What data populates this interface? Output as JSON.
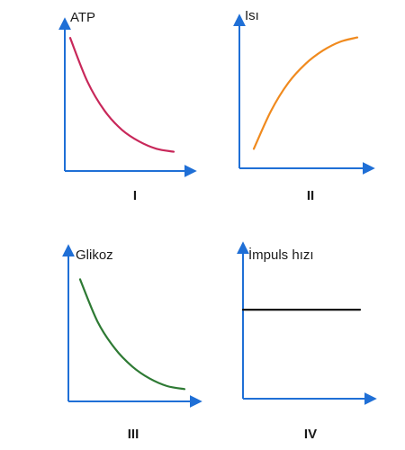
{
  "chart_data": [
    {
      "type": "line",
      "ylabel": "ATP",
      "xlabel": "",
      "panel_label": "I",
      "trend": "decreasing",
      "shape": "convex-decay",
      "color": "#c8285a",
      "series": [
        {
          "values": [
            0.9,
            0.6,
            0.4,
            0.27,
            0.19,
            0.14,
            0.12
          ]
        }
      ]
    },
    {
      "type": "line",
      "ylabel": "Isı",
      "xlabel": "",
      "panel_label": "II",
      "trend": "increasing",
      "shape": "concave-rise",
      "color": "#f08a1e",
      "series": [
        {
          "values": [
            0.12,
            0.38,
            0.57,
            0.7,
            0.79,
            0.85,
            0.88
          ]
        }
      ]
    },
    {
      "type": "line",
      "ylabel": "Glikoz",
      "xlabel": "",
      "panel_label": "III",
      "trend": "decreasing",
      "shape": "convex-decay",
      "color": "#2e7a34",
      "series": [
        {
          "values": [
            0.8,
            0.52,
            0.34,
            0.22,
            0.14,
            0.09,
            0.07
          ]
        }
      ]
    },
    {
      "type": "line",
      "ylabel": "İmpuls hızı",
      "xlabel": "",
      "panel_label": "IV",
      "trend": "constant",
      "shape": "flat",
      "color": "#111111",
      "series": [
        {
          "values": [
            0.58,
            0.58,
            0.58,
            0.58,
            0.58,
            0.58,
            0.58
          ]
        }
      ]
    }
  ],
  "axis_color": "#1f6fd6"
}
